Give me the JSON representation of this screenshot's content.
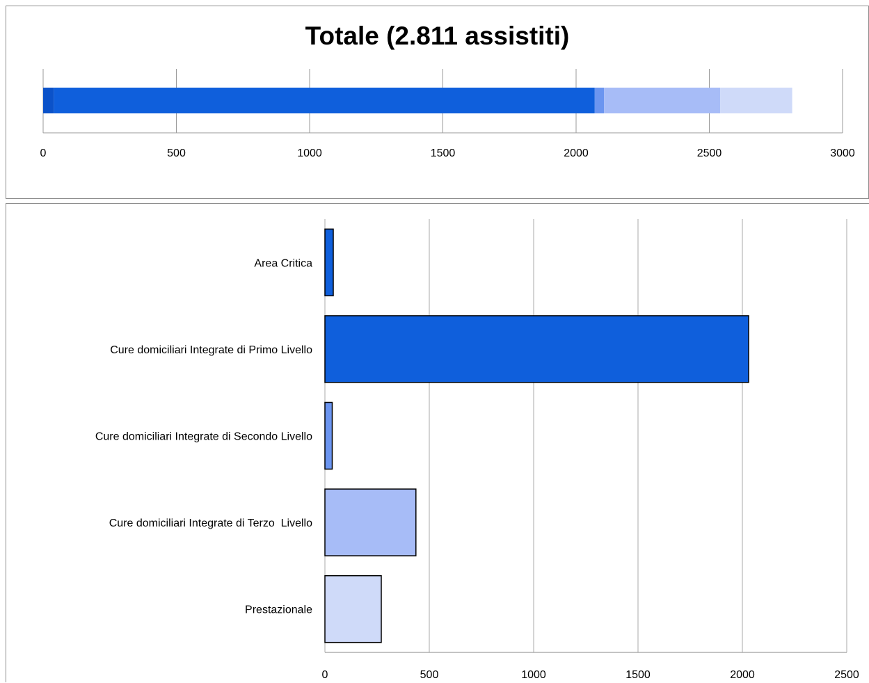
{
  "chart_data": [
    {
      "type": "bar",
      "orientation": "horizontal",
      "stacked": true,
      "title": "Totale (2.811 assistiti)",
      "xlim": [
        0,
        3000
      ],
      "xticks": [
        "0",
        "500",
        "1000",
        "1500",
        "2000",
        "2500",
        "3000"
      ],
      "grid": true,
      "segments": [
        {
          "value": 40,
          "color": "#0b52c9"
        },
        {
          "value": 2030,
          "color": "#0f5fdc"
        },
        {
          "value": 35,
          "color": "#6b95f0"
        },
        {
          "value": 436,
          "color": "#a7bcf7"
        },
        {
          "value": 270,
          "color": "#cfdaf9"
        }
      ]
    },
    {
      "type": "bar",
      "orientation": "horizontal",
      "xlim": [
        0,
        2500
      ],
      "xticks": [
        "0",
        "500",
        "1000",
        "1500",
        "2000",
        "2500"
      ],
      "grid": true,
      "categories": [
        "Area Critica",
        "Cure domiciliari Integrate di Primo Livello",
        "Cure domiciliari Integrate di Secondo Livello",
        "Cure domiciliari Integrate di Terzo  Livello",
        "Prestazionale"
      ],
      "values": [
        40,
        2030,
        35,
        436,
        270
      ],
      "colors": [
        "#0f5fdc",
        "#0f5fdc",
        "#6b95f0",
        "#a7bcf7",
        "#cfdaf9"
      ]
    }
  ]
}
